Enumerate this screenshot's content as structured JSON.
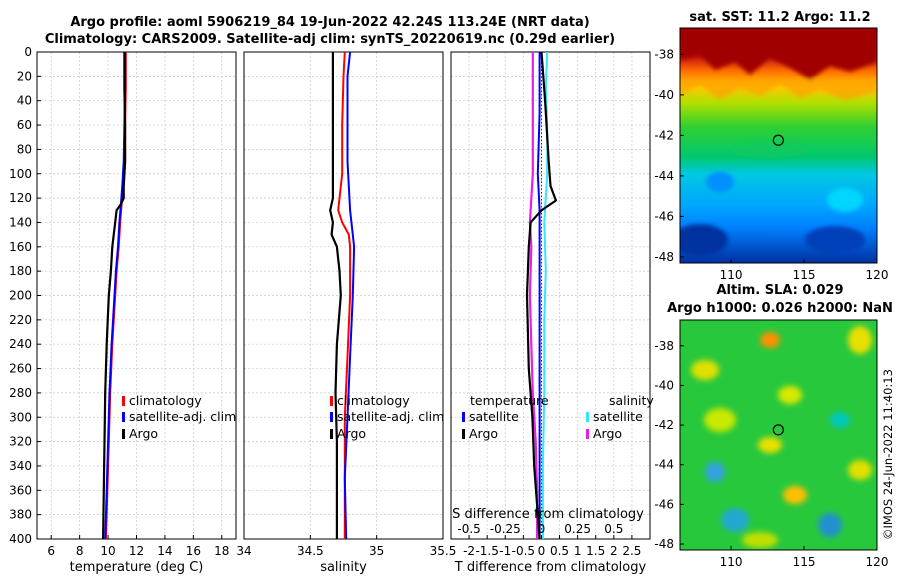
{
  "titles": {
    "line1": "Argo profile: aoml 5906219_84 19-Jun-2022 42.24S 113.24E (NRT data)",
    "line2": "Climatology: CARS2009. Satellite-adj clim: synTS_20220619.nc (0.29d earlier)",
    "sst_map": "sat. SST: 11.2 Argo: 11.2",
    "sla_map_line1": "Altim. SLA: 0.029",
    "sla_map_line2": "Argo h1000: 0.026 h2000: NaN"
  },
  "credit": "©IMOS 24-Jun-2022 11:40:13",
  "colors": {
    "climatology": "#ff0000",
    "satellite": "#0000ff",
    "argo": "#000000",
    "salinity_sat": "#33e6ff",
    "salinity_argo": "#e61ee6"
  },
  "chart_data": [
    {
      "type": "line",
      "name": "temperature_panel",
      "xlabel": "temperature (deg C)",
      "ylabel": "",
      "xlim": [
        5,
        19
      ],
      "ylim": [
        400,
        0
      ],
      "xticks": [
        6,
        8,
        10,
        12,
        14,
        16,
        18
      ],
      "yticks": [
        0,
        20,
        40,
        60,
        80,
        100,
        120,
        140,
        160,
        180,
        200,
        220,
        240,
        260,
        280,
        300,
        320,
        340,
        360,
        380,
        400
      ],
      "grid": true,
      "legend": [
        "climatology",
        "satellite-adj. clim",
        "Argo"
      ],
      "series": [
        {
          "name": "climatology",
          "depth": [
            0,
            30,
            60,
            90,
            110,
            125,
            140,
            160,
            180,
            200,
            240,
            280,
            320,
            360,
            400
          ],
          "values": [
            11.25,
            11.25,
            11.2,
            11.2,
            11.1,
            10.95,
            10.85,
            10.75,
            10.6,
            10.5,
            10.3,
            10.15,
            10.05,
            9.95,
            9.85
          ]
        },
        {
          "name": "satellite-adj. clim",
          "depth": [
            0,
            30,
            60,
            90,
            110,
            125,
            140,
            160,
            180,
            200,
            240,
            280,
            320,
            360,
            400
          ],
          "values": [
            11.2,
            11.2,
            11.15,
            11.1,
            11.0,
            10.9,
            10.8,
            10.7,
            10.55,
            10.45,
            10.25,
            10.1,
            10.0,
            9.9,
            9.8
          ]
        },
        {
          "name": "Argo",
          "depth": [
            0,
            30,
            60,
            90,
            110,
            120,
            125,
            130,
            140,
            160,
            180,
            200,
            240,
            280,
            320,
            360,
            400
          ],
          "values": [
            11.15,
            11.15,
            11.2,
            11.2,
            11.1,
            11.1,
            10.9,
            10.6,
            10.5,
            10.3,
            10.2,
            10.05,
            9.9,
            9.8,
            9.75,
            9.7,
            9.65
          ]
        }
      ]
    },
    {
      "type": "line",
      "name": "salinity_panel",
      "xlabel": "salinity",
      "ylabel": "",
      "xlim": [
        34,
        35.5
      ],
      "ylim": [
        400,
        0
      ],
      "xticks": [
        34,
        34.5,
        35,
        35.5
      ],
      "xticklabels": [
        "34",
        "34.5",
        "35",
        "35.5"
      ],
      "grid": true,
      "legend": [
        "climatology",
        "satellite-adj. clim",
        "Argo"
      ],
      "series": [
        {
          "name": "climatology",
          "depth": [
            0,
            20,
            60,
            100,
            120,
            130,
            140,
            150,
            160,
            200,
            250,
            300,
            350,
            400
          ],
          "values": [
            34.76,
            34.75,
            34.74,
            34.74,
            34.72,
            34.71,
            34.74,
            34.79,
            34.8,
            34.8,
            34.78,
            34.76,
            34.76,
            34.76
          ]
        },
        {
          "name": "satellite-adj. clim",
          "depth": [
            0,
            20,
            60,
            90,
            110,
            130,
            150,
            160,
            200,
            250,
            300,
            350,
            400
          ],
          "values": [
            34.8,
            34.78,
            34.78,
            34.78,
            34.79,
            34.8,
            34.82,
            34.83,
            34.82,
            34.8,
            34.78,
            34.76,
            34.77
          ]
        },
        {
          "name": "Argo",
          "depth": [
            0,
            40,
            80,
            120,
            130,
            140,
            150,
            160,
            180,
            200,
            240,
            280,
            320,
            360,
            400
          ],
          "values": [
            34.67,
            34.67,
            34.67,
            34.67,
            34.65,
            34.67,
            34.66,
            34.7,
            34.72,
            34.73,
            34.7,
            34.69,
            34.7,
            34.7,
            34.7
          ]
        }
      ]
    },
    {
      "type": "line",
      "name": "difference_panel",
      "xlabel": "T difference from climatology",
      "xlabel_top": "S difference from climatology",
      "xlim": [
        -2.5,
        3
      ],
      "ylim": [
        400,
        0
      ],
      "xticks": [
        -2,
        -1.5,
        -1,
        -0.5,
        0,
        0.5,
        1,
        1.5,
        2,
        2.5
      ],
      "xticklabels": [
        "-2",
        "-1.5",
        "-1",
        "-0.5",
        "0",
        "0.5",
        "1",
        "1.5",
        "2",
        "2.5"
      ],
      "top_ticks": [
        -0.5,
        -0.25,
        0,
        0.25,
        0.5
      ],
      "top_ticklabels": [
        "-0.5",
        "-0.25",
        "0",
        "0.25",
        "0.5"
      ],
      "grid": true,
      "legend_left_title": "temperature",
      "legend_right_title": "salinity",
      "legend_left": [
        "satellite",
        "Argo"
      ],
      "legend_right": [
        "satellite",
        "Argo"
      ],
      "series": [
        {
          "name": "T satellite",
          "depth": [
            0,
            50,
            100,
            130,
            160,
            200,
            300,
            400
          ],
          "values": [
            -0.05,
            -0.05,
            -0.1,
            -0.05,
            -0.05,
            -0.05,
            -0.05,
            -0.05
          ]
        },
        {
          "name": "T Argo",
          "depth": [
            0,
            40,
            90,
            110,
            122,
            130,
            140,
            160,
            200,
            260,
            300,
            340,
            380,
            400
          ],
          "values": [
            0.0,
            0.1,
            0.2,
            0.25,
            0.4,
            0.0,
            -0.3,
            -0.35,
            -0.4,
            -0.35,
            -0.25,
            -0.2,
            -0.1,
            -0.05
          ]
        },
        {
          "name": "S satellite",
          "depth": [
            0,
            30,
            60,
            100,
            140,
            180,
            220,
            280,
            340,
            400
          ],
          "values": [
            0.04,
            0.03,
            0.04,
            0.04,
            0.02,
            0.03,
            0.02,
            0.02,
            0.01,
            0.01
          ]
        },
        {
          "name": "S Argo",
          "depth": [
            0,
            30,
            60,
            100,
            140,
            160,
            200,
            240,
            280,
            320,
            360,
            400
          ],
          "values": [
            -0.06,
            -0.06,
            -0.06,
            -0.06,
            -0.08,
            -0.07,
            -0.08,
            -0.07,
            -0.06,
            -0.04,
            -0.03,
            -0.03
          ]
        }
      ]
    },
    {
      "type": "heatmap",
      "name": "sst_map",
      "xlim": [
        106.5,
        120
      ],
      "ylim": [
        -48.3,
        -36.7
      ],
      "xticks": [
        110,
        115,
        120
      ],
      "yticks": [
        -38,
        -40,
        -42,
        -44,
        -46,
        -48
      ],
      "marker": {
        "lon": 113.24,
        "lat": -42.24
      }
    },
    {
      "type": "heatmap",
      "name": "sla_map",
      "xlim": [
        106.5,
        120
      ],
      "ylim": [
        -48.3,
        -36.7
      ],
      "xticks": [
        110,
        115,
        120
      ],
      "yticks": [
        -38,
        -40,
        -42,
        -44,
        -46,
        -48
      ],
      "marker": {
        "lon": 113.24,
        "lat": -42.24
      }
    }
  ]
}
